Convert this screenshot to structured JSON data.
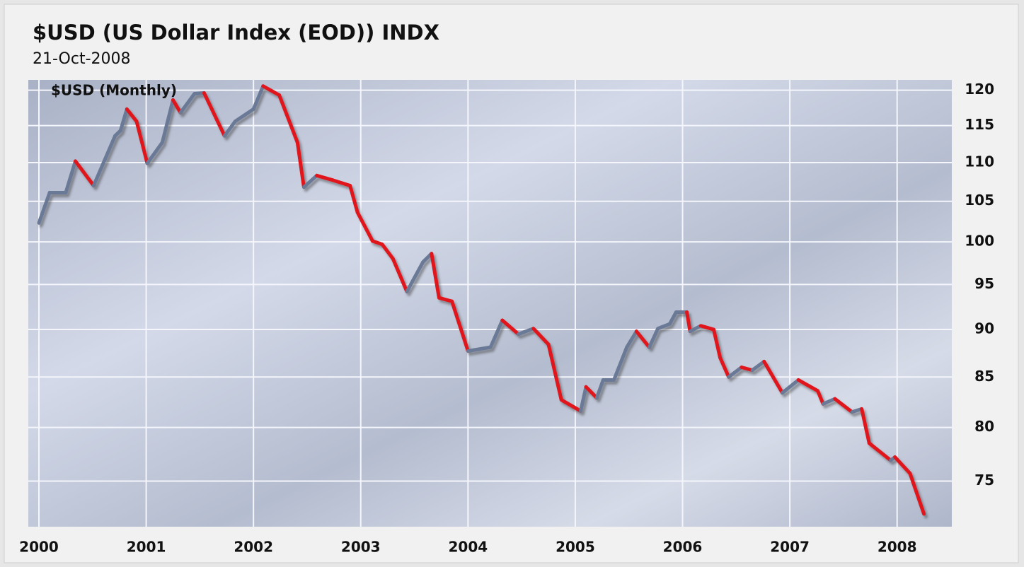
{
  "chart_data": {
    "type": "line",
    "title": "$USD (US Dollar Index (EOD)) INDX",
    "subtitle": "21-Oct-2008",
    "annotation": "$USD (Monthly)",
    "log_scale": true,
    "grid": true,
    "y_axis_side": "right",
    "up_color": "#6b7a96",
    "down_color": "#e0161b",
    "xlim": [
      2000,
      2008.51
    ],
    "xticks": [
      2000,
      2001,
      2002,
      2003,
      2004,
      2005,
      2006,
      2007,
      2008
    ],
    "ylim": [
      71,
      121.5
    ],
    "yticks": [
      75,
      80,
      85,
      90,
      95,
      100,
      105,
      110,
      115,
      120
    ],
    "x": [
      2000.0,
      2000.1,
      2000.25,
      2000.34,
      2000.51,
      2000.71,
      2000.76,
      2000.82,
      2000.91,
      2001.01,
      2001.15,
      2001.25,
      2001.32,
      2001.45,
      2001.54,
      2001.73,
      2001.83,
      2002.0,
      2002.09,
      2002.24,
      2002.41,
      2002.47,
      2002.59,
      2002.74,
      2002.9,
      2002.97,
      2003.11,
      2003.2,
      2003.3,
      2003.43,
      2003.58,
      2003.66,
      2003.73,
      2003.85,
      2004.0,
      2004.21,
      2004.32,
      2004.47,
      2004.61,
      2004.75,
      2004.87,
      2005.05,
      2005.1,
      2005.2,
      2005.26,
      2005.36,
      2005.48,
      2005.57,
      2005.69,
      2005.77,
      2005.88,
      2005.94,
      2006.04,
      2006.07,
      2006.17,
      2006.29,
      2006.35,
      2006.43,
      2006.55,
      2006.65,
      2006.76,
      2006.93,
      2007.08,
      2007.26,
      2007.31,
      2007.42,
      2007.58,
      2007.67,
      2007.74,
      2007.94,
      2007.98,
      2008.12,
      2008.25
    ],
    "series": [
      {
        "name": "$USD",
        "values": [
          102.3,
          106.1,
          106.1,
          110.2,
          107.0,
          113.6,
          114.3,
          117.3,
          115.6,
          109.9,
          112.7,
          118.6,
          116.8,
          119.5,
          119.6,
          113.6,
          115.6,
          117.3,
          120.6,
          119.3,
          112.7,
          106.8,
          108.3,
          107.7,
          107.0,
          103.6,
          100.1,
          99.7,
          98.0,
          94.2,
          97.6,
          98.6,
          93.5,
          93.1,
          87.7,
          88.1,
          91.0,
          89.5,
          90.1,
          88.4,
          82.7,
          81.6,
          84.0,
          82.9,
          84.7,
          84.7,
          88.1,
          89.8,
          88.1,
          90.1,
          90.6,
          91.9,
          91.9,
          89.8,
          90.4,
          90.0,
          87.0,
          85.0,
          86.0,
          85.7,
          86.6,
          83.4,
          84.7,
          83.6,
          82.3,
          82.8,
          81.5,
          81.8,
          78.5,
          76.9,
          77.2,
          75.7,
          72.1
        ]
      }
    ]
  }
}
